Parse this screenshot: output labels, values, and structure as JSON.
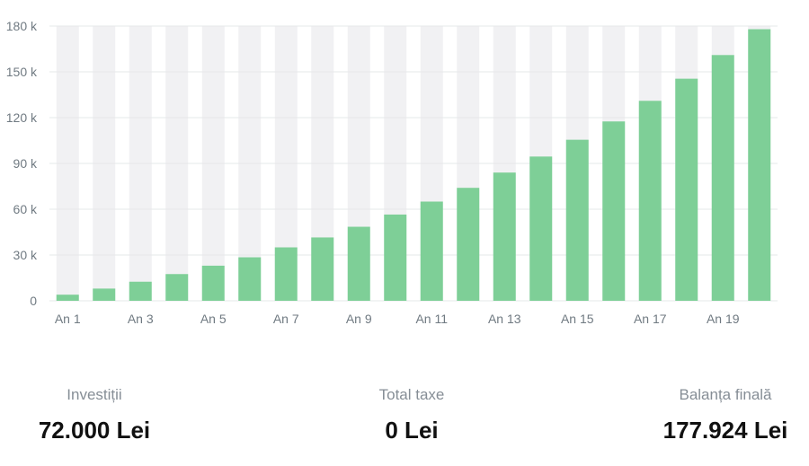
{
  "colors": {
    "bar": "#7ecf97",
    "track": "#f1f1f3",
    "grid": "#e6e8ea",
    "label": "#707a82"
  },
  "chart_data": {
    "type": "bar",
    "categories": [
      "An 1",
      "An 2",
      "An 3",
      "An 4",
      "An 5",
      "An 6",
      "An 7",
      "An 8",
      "An 9",
      "An 10",
      "An 11",
      "An 12",
      "An 13",
      "An 14",
      "An 15",
      "An 16",
      "An 17",
      "An 18",
      "An 19",
      "An 20"
    ],
    "x_tick_labels": [
      "An 1",
      "An 3",
      "An 5",
      "An 7",
      "An 9",
      "An 11",
      "An 13",
      "An 15",
      "An 17",
      "An 19"
    ],
    "values": [
      4000,
      8000,
      12500,
      17500,
      23000,
      28500,
      35000,
      41500,
      48500,
      56500,
      65000,
      74000,
      84000,
      94500,
      105500,
      117500,
      131000,
      145500,
      161000,
      177924
    ],
    "y_ticks": [
      0,
      30000,
      60000,
      90000,
      120000,
      150000,
      180000
    ],
    "y_tick_labels": [
      "0",
      "30 k",
      "60 k",
      "90 k",
      "120 k",
      "150 k",
      "180 k"
    ],
    "ylim": [
      0,
      180000
    ],
    "title": "",
    "xlabel": "",
    "ylabel": "",
    "grid": true
  },
  "summary": {
    "investitii": {
      "label": "Investiții",
      "value": "72.000 Lei"
    },
    "taxe": {
      "label": "Total taxe",
      "value": "0 Lei"
    },
    "balanta": {
      "label": "Balanța finală",
      "value": "177.924 Lei"
    }
  }
}
